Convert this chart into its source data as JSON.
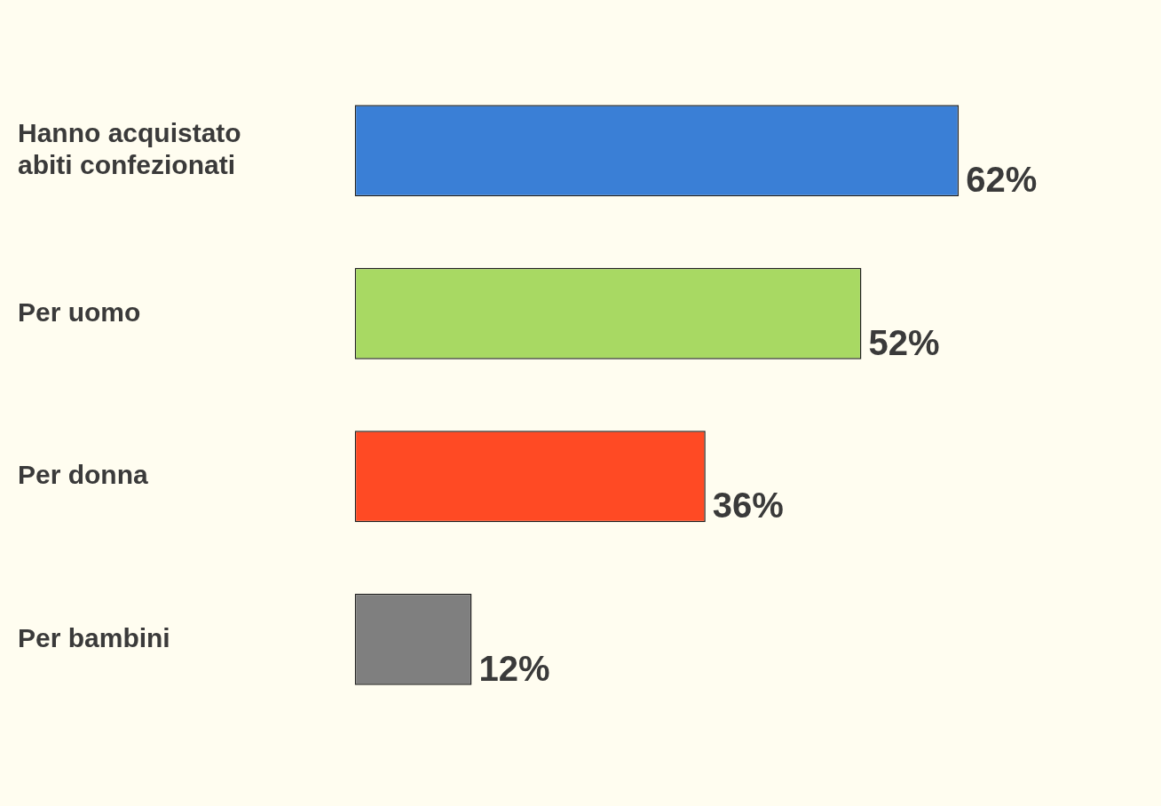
{
  "chart_data": {
    "type": "bar",
    "orientation": "horizontal",
    "categories": [
      "Hanno acquistato abiti confezionati",
      "Per uomo",
      "Per donna",
      "Per bambini"
    ],
    "values": [
      62,
      52,
      36,
      12
    ],
    "colors": [
      "#3a7fd6",
      "#a8d963",
      "#ff4a24",
      "#7f7f7f"
    ],
    "value_labels": [
      "62%",
      "52%",
      "36%",
      "12%"
    ],
    "legend": false
  }
}
